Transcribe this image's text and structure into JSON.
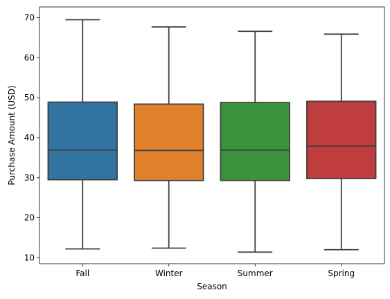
{
  "chart_data": {
    "type": "box",
    "title": "",
    "xlabel": "Season",
    "ylabel": "Purchase Amount (USD)",
    "ylim": [
      8.5,
      72.7
    ],
    "y_ticks": [
      10,
      20,
      30,
      40,
      50,
      60,
      70
    ],
    "grid": false,
    "categories": [
      "Fall",
      "Winter",
      "Summer",
      "Spring"
    ],
    "boxes": [
      {
        "category": "Fall",
        "whisker_low": 12.2,
        "q1": 29.5,
        "median": 36.9,
        "q3": 48.9,
        "whisker_high": 69.5,
        "color": "#3274a1"
      },
      {
        "category": "Winter",
        "whisker_low": 12.4,
        "q1": 29.3,
        "median": 36.8,
        "q3": 48.4,
        "whisker_high": 67.7,
        "color": "#e1812c"
      },
      {
        "category": "Summer",
        "whisker_low": 11.4,
        "q1": 29.3,
        "median": 36.9,
        "q3": 48.8,
        "whisker_high": 66.6,
        "color": "#3a923a"
      },
      {
        "category": "Spring",
        "whisker_low": 12.0,
        "q1": 29.8,
        "median": 37.9,
        "q3": 49.1,
        "whisker_high": 65.9,
        "color": "#c03d3e"
      }
    ],
    "line_color": "#3f3f3f"
  }
}
